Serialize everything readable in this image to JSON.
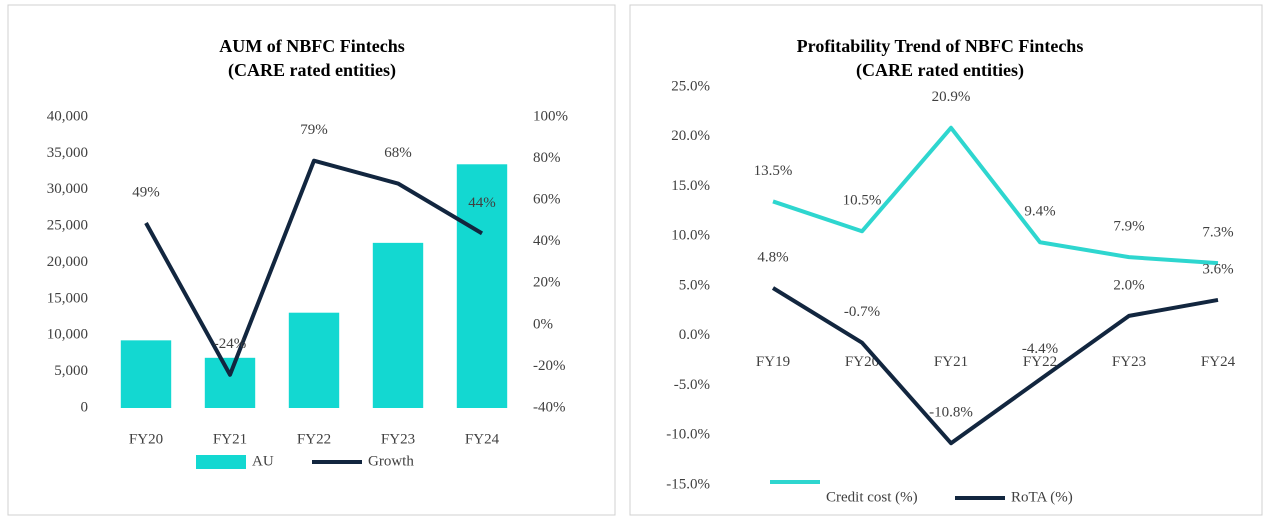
{
  "chart_data": [
    {
      "type": "bar",
      "title": "AUM of NBFC Fintechs",
      "subtitle": "(CARE rated entities)",
      "categories": [
        "FY20",
        "FY21",
        "FY22",
        "FY23",
        "FY24"
      ],
      "series": [
        {
          "name": "AU",
          "type": "bar",
          "color": "#13d8d1",
          "values": [
            9300,
            6900,
            13100,
            22700,
            33500
          ]
        },
        {
          "name": "Growth",
          "type": "line",
          "axis": "y2",
          "color": "#12263f",
          "values": [
            49,
            -24,
            79,
            68,
            44
          ],
          "value_labels": [
            "49%",
            "-24%",
            "79%",
            "68%",
            "44%"
          ]
        }
      ],
      "ylim": [
        0,
        40000
      ],
      "yticks": [
        0,
        {
          "value": 5000,
          "label": "5,000"
        },
        {
          "value": 10000,
          "label": "10,000"
        },
        {
          "value": 15000,
          "label": "15,000"
        },
        {
          "value": 20000,
          "label": "20,000"
        },
        {
          "value": 25000,
          "label": "25,000"
        },
        {
          "value": 30000,
          "label": "30,000"
        },
        {
          "value": 35000,
          "label": "35,000"
        },
        {
          "value": 40000,
          "label": "40,000"
        }
      ],
      "y2lim": [
        -40,
        100
      ],
      "y2ticks": [
        {
          "value": -40,
          "label": "-40%"
        },
        {
          "value": -20,
          "label": "-20%"
        },
        {
          "value": 0,
          "label": "0%"
        },
        {
          "value": 20,
          "label": "20%"
        },
        {
          "value": 40,
          "label": "40%"
        },
        {
          "value": 60,
          "label": "60%"
        },
        {
          "value": 80,
          "label": "80%"
        },
        {
          "value": 100,
          "label": "100%"
        }
      ],
      "grid": false
    },
    {
      "type": "line",
      "title": "Profitability Trend of NBFC Fintechs",
      "subtitle": "(CARE rated entities)",
      "categories": [
        "FY19",
        "FY20",
        "FY21",
        "FY22",
        "FY23",
        "FY24"
      ],
      "series": [
        {
          "name": "Credit cost (%)",
          "color": "#2ed6cf",
          "values": [
            13.5,
            10.5,
            20.9,
            9.4,
            7.9,
            7.3
          ],
          "value_labels": [
            "13.5%",
            "10.5%",
            "20.9%",
            "9.4%",
            "7.9%",
            "7.3%"
          ]
        },
        {
          "name": "RoTA (%)",
          "color": "#12263f",
          "values": [
            4.8,
            -0.7,
            -10.8,
            -4.4,
            2.0,
            3.6
          ],
          "value_labels": [
            "4.8%",
            "-0.7%",
            "-10.8%",
            "-4.4%",
            "2.0%",
            "3.6%"
          ]
        }
      ],
      "ylim": [
        -15,
        25
      ],
      "yticks": [
        {
          "value": -15,
          "label": "-15.0%"
        },
        {
          "value": -10,
          "label": "-10.0%"
        },
        {
          "value": -5,
          "label": "-5.0%"
        },
        {
          "value": 0,
          "label": "0.0%"
        },
        {
          "value": 5,
          "label": "5.0%"
        },
        {
          "value": 10,
          "label": "10.0%"
        },
        {
          "value": 15,
          "label": "15.0%"
        },
        {
          "value": 20,
          "label": "20.0%"
        },
        {
          "value": 25,
          "label": "25.0%"
        }
      ],
      "grid": false
    }
  ]
}
